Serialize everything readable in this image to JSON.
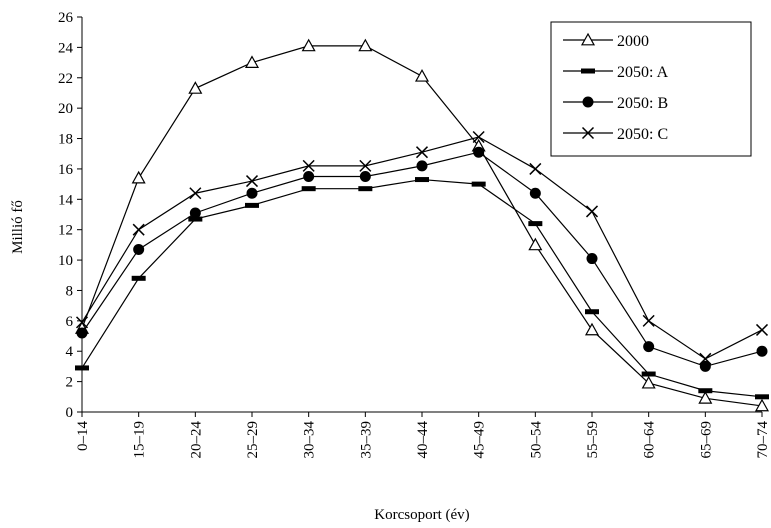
{
  "chart_data": {
    "type": "line",
    "xlabel": "Korcsoport (év)",
    "ylabel": "Millió fő",
    "ylim": [
      0,
      26
    ],
    "ytick_step": 2,
    "grid": false,
    "legend_position": "top-right",
    "categories": [
      "0–14",
      "15–19",
      "20–24",
      "25–29",
      "30–34",
      "35–39",
      "40–44",
      "45–49",
      "50–54",
      "55–59",
      "60–64",
      "65–69",
      "70–74"
    ],
    "series": [
      {
        "name": "2000",
        "marker": "triangle-open",
        "values": [
          5.5,
          15.4,
          21.3,
          23.0,
          24.1,
          24.1,
          22.1,
          17.5,
          11.0,
          5.4,
          1.9,
          0.9,
          0.4
        ]
      },
      {
        "name": "2050: A",
        "marker": "dash",
        "values": [
          2.9,
          8.8,
          12.7,
          13.6,
          14.7,
          14.7,
          15.3,
          15.0,
          12.4,
          6.6,
          2.5,
          1.4,
          1.0
        ]
      },
      {
        "name": "2050: B",
        "marker": "circle-filled",
        "values": [
          5.2,
          10.7,
          13.1,
          14.4,
          15.5,
          15.5,
          16.2,
          17.1,
          14.4,
          10.1,
          4.3,
          3.0,
          4.0
        ]
      },
      {
        "name": "2050: C",
        "marker": "x",
        "values": [
          5.9,
          12.0,
          14.4,
          15.2,
          16.2,
          16.2,
          17.1,
          18.1,
          16.0,
          13.2,
          6.0,
          3.5,
          5.4
        ]
      }
    ]
  }
}
